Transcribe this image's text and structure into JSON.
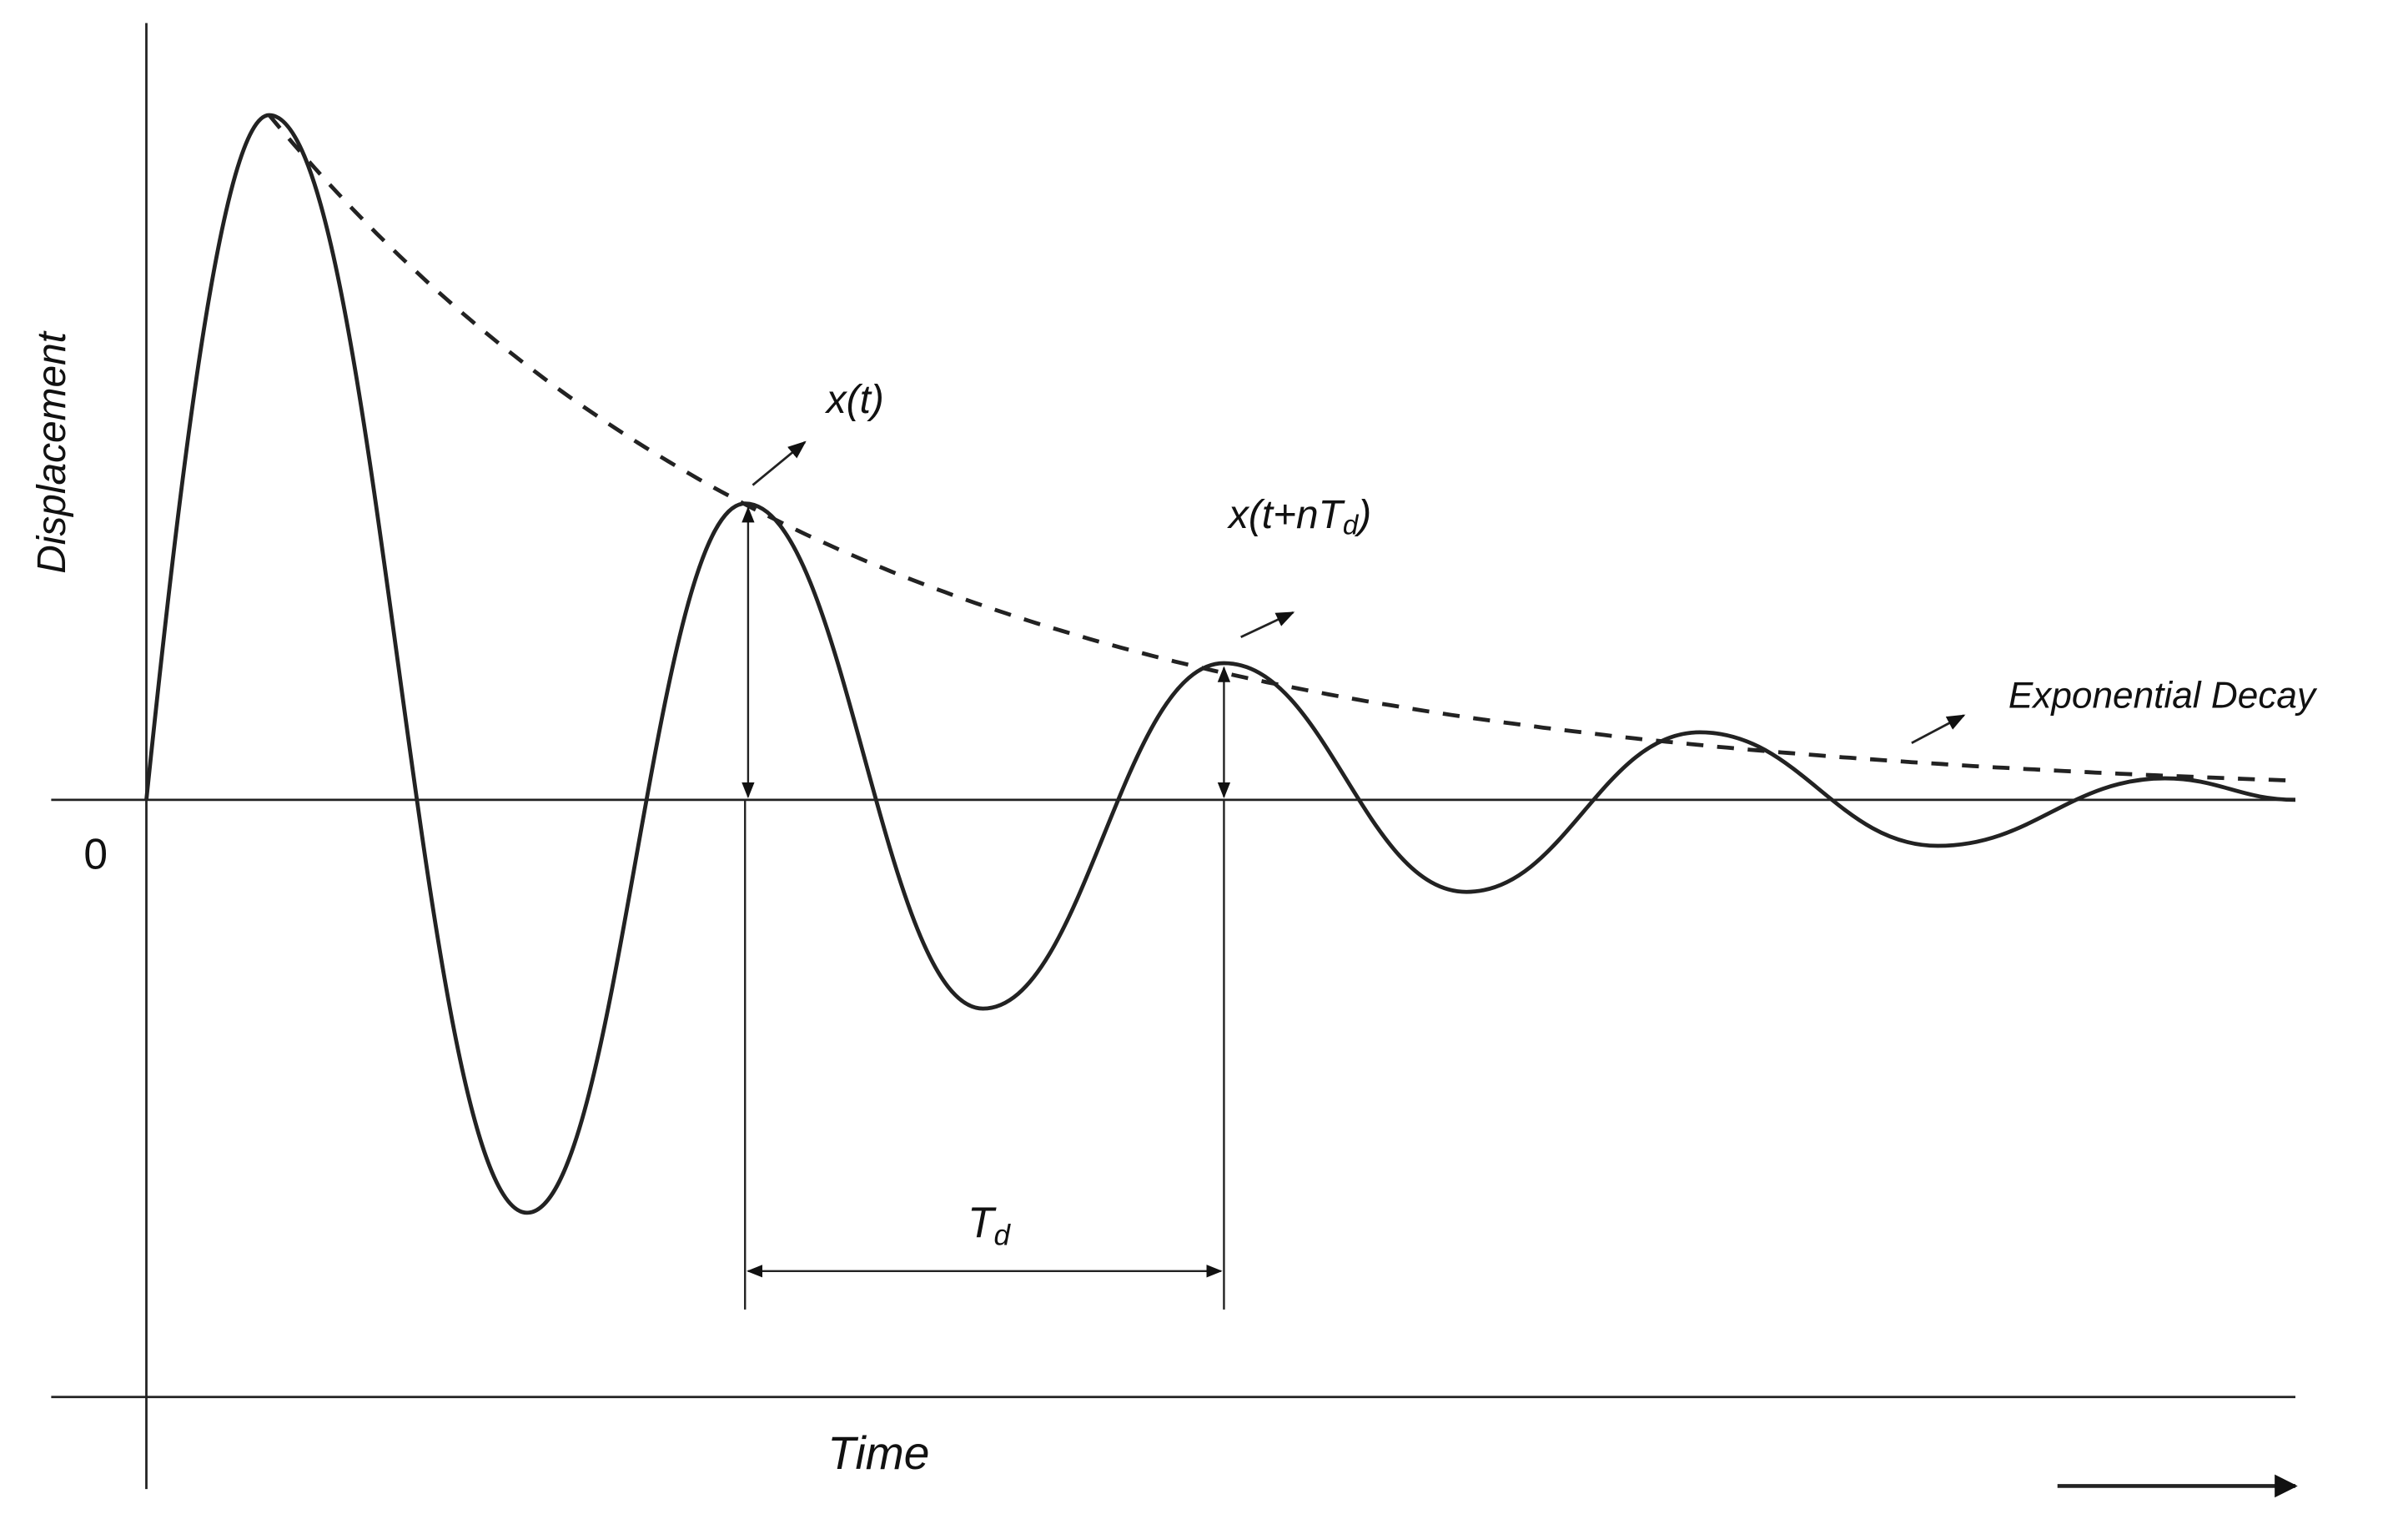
{
  "axes": {
    "y_label": "Displacement",
    "x_label": "Time",
    "origin": "0"
  },
  "annotations": {
    "x_t": "x(t)",
    "x_t_nTd": {
      "main": "x(t+nT",
      "sub": "d",
      "tail": ")"
    },
    "period": {
      "main": "T",
      "sub": "d"
    },
    "envelope": "Exponential Decay"
  }
}
